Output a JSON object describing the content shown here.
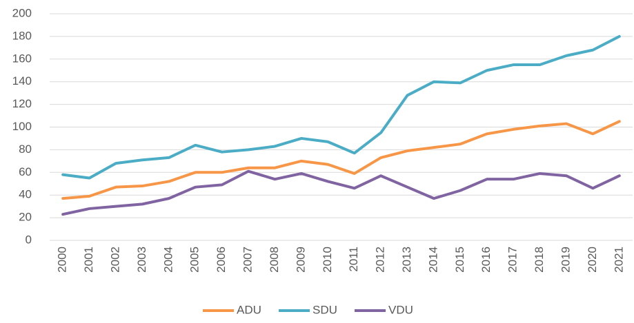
{
  "chart_data": {
    "type": "line",
    "categories": [
      "2000",
      "2001",
      "2002",
      "2003",
      "2004",
      "2005",
      "2006",
      "2007",
      "2008",
      "2009",
      "2010",
      "2011",
      "2012",
      "2013",
      "2014",
      "2015",
      "2016",
      "2017",
      "2018",
      "2019",
      "2020",
      "2021"
    ],
    "series": [
      {
        "name": "ADU",
        "color": "#f79646",
        "values": [
          37,
          39,
          47,
          48,
          52,
          60,
          60,
          64,
          64,
          70,
          67,
          59,
          73,
          79,
          82,
          85,
          94,
          98,
          101,
          103,
          94,
          105
        ]
      },
      {
        "name": "SDU",
        "color": "#4bacc6",
        "values": [
          58,
          55,
          68,
          71,
          73,
          84,
          78,
          80,
          83,
          90,
          87,
          77,
          95,
          128,
          140,
          139,
          150,
          155,
          155,
          163,
          168,
          180
        ]
      },
      {
        "name": "VDU",
        "color": "#8064a2",
        "values": [
          23,
          28,
          30,
          32,
          37,
          47,
          49,
          61,
          54,
          59,
          52,
          46,
          57,
          47,
          37,
          44,
          54,
          54,
          59,
          57,
          46,
          57
        ]
      }
    ],
    "ylim": [
      0,
      200
    ],
    "yticks": [
      0,
      20,
      40,
      60,
      80,
      100,
      120,
      140,
      160,
      180,
      200
    ],
    "grid": true,
    "legend": "bottom"
  }
}
